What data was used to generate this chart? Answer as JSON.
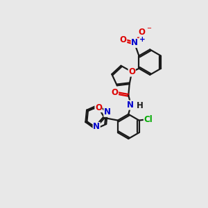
{
  "background_color": "#e8e8e8",
  "bond_color": "#1a1a1a",
  "bond_width": 1.6,
  "atom_colors": {
    "O": "#dd0000",
    "N": "#0000cc",
    "Cl": "#00aa00",
    "C": "#1a1a1a"
  },
  "font_size": 8.5,
  "fig_width": 3.0,
  "fig_height": 3.0,
  "dpi": 100
}
